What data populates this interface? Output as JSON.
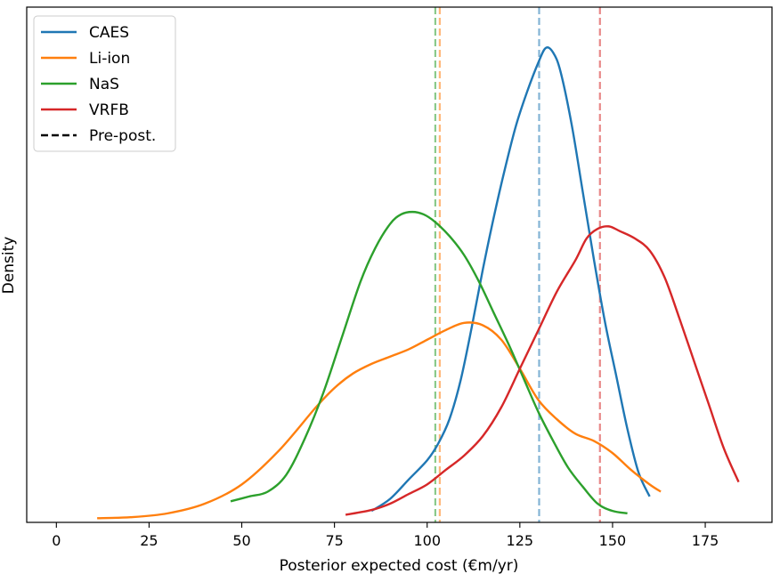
{
  "chart_data": {
    "type": "line",
    "title": "",
    "xlabel": "Posterior expected cost (€m/yr)",
    "ylabel": "Density",
    "xlim": [
      -8,
      193
    ],
    "ylim": [
      0,
      1.0
    ],
    "xticks": [
      0,
      25,
      50,
      75,
      100,
      125,
      150,
      175
    ],
    "yticks": [],
    "grid": false,
    "legend": {
      "placement": "top-left",
      "entries": [
        "CAES",
        "Li-ion",
        "NaS",
        "VRFB",
        "Pre-post."
      ]
    },
    "colors": {
      "CAES": "#1f77b4",
      "Li-ion": "#ff7f0e",
      "NaS": "#2ca02c",
      "VRFB": "#d62728",
      "reference": "#000000"
    },
    "series": [
      {
        "name": "CAES",
        "x": [
          85,
          90,
          95,
          100,
          103,
          106,
          109,
          112,
          115,
          118,
          121,
          124,
          127,
          130,
          132,
          134,
          136,
          139,
          142,
          145,
          148,
          151,
          154,
          157,
          160
        ],
        "y": [
          0.02,
          0.045,
          0.085,
          0.125,
          0.16,
          0.21,
          0.29,
          0.4,
          0.52,
          0.63,
          0.73,
          0.82,
          0.89,
          0.95,
          0.98,
          0.97,
          0.93,
          0.82,
          0.68,
          0.54,
          0.41,
          0.3,
          0.19,
          0.1,
          0.05
        ]
      },
      {
        "name": "Li-ion",
        "x": [
          11,
          20,
          30,
          40,
          50,
          60,
          70,
          75,
          80,
          85,
          90,
          95,
          100,
          105,
          110,
          115,
          120,
          125,
          130,
          135,
          140,
          145,
          150,
          155,
          160,
          163
        ],
        "y": [
          0.005,
          0.007,
          0.015,
          0.035,
          0.075,
          0.145,
          0.235,
          0.275,
          0.305,
          0.325,
          0.34,
          0.355,
          0.375,
          0.395,
          0.41,
          0.405,
          0.375,
          0.315,
          0.25,
          0.21,
          0.18,
          0.165,
          0.14,
          0.105,
          0.075,
          0.06
        ]
      },
      {
        "name": "NaS",
        "x": [
          47,
          52,
          57,
          62,
          67,
          72,
          77,
          82,
          86,
          90,
          93,
          96,
          99,
          102,
          106,
          110,
          114,
          118,
          122,
          126,
          130,
          134,
          138,
          142,
          146,
          150,
          154
        ],
        "y": [
          0.04,
          0.05,
          0.06,
          0.095,
          0.17,
          0.265,
          0.38,
          0.495,
          0.565,
          0.615,
          0.635,
          0.64,
          0.635,
          0.62,
          0.59,
          0.55,
          0.495,
          0.43,
          0.365,
          0.295,
          0.225,
          0.165,
          0.11,
          0.07,
          0.035,
          0.02,
          0.015
        ]
      },
      {
        "name": "VRFB",
        "x": [
          78,
          85,
          90,
          95,
          100,
          105,
          110,
          115,
          120,
          125,
          130,
          135,
          140,
          143,
          146,
          149,
          152,
          156,
          160,
          164,
          168,
          172,
          176,
          180,
          184
        ],
        "y": [
          0.012,
          0.022,
          0.035,
          0.055,
          0.075,
          0.105,
          0.135,
          0.175,
          0.235,
          0.315,
          0.395,
          0.475,
          0.54,
          0.585,
          0.605,
          0.61,
          0.6,
          0.585,
          0.56,
          0.505,
          0.42,
          0.33,
          0.24,
          0.15,
          0.08
        ]
      }
    ],
    "reference_lines": [
      {
        "series": "CAES",
        "x": 130.2
      },
      {
        "series": "Li-ion",
        "x": 103.4
      },
      {
        "series": "NaS",
        "x": 102.2
      },
      {
        "series": "VRFB",
        "x": 146.6
      }
    ]
  }
}
